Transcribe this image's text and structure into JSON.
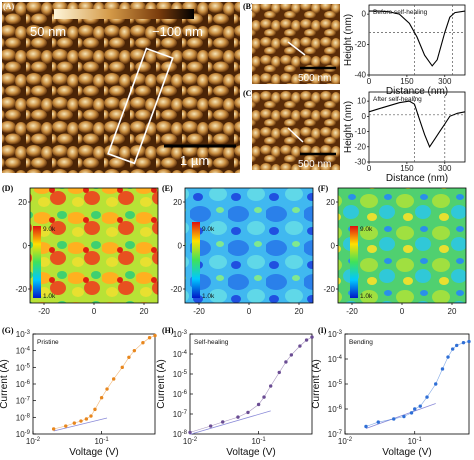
{
  "panels": {
    "A": {
      "label": "(A)",
      "scale_top_left": "50 nm",
      "scale_top_right": "−100 nm",
      "scalebar": "1 µm"
    },
    "B": {
      "label": "(B)",
      "scalebar": "500 nm",
      "legend": "Before self-healing"
    },
    "C": {
      "label": "(C)",
      "scalebar": "500 nm",
      "legend": "After self-healing"
    },
    "D": {
      "label": "(D)",
      "cmax": "9.0k",
      "cmin": "1.0k"
    },
    "E": {
      "label": "(E)",
      "cmax": "9.0k",
      "cmin": "1.0k"
    },
    "F": {
      "label": "(F)",
      "cmax": "9.0k",
      "cmin": "1.0k"
    },
    "G": {
      "label": "(G)",
      "legend": "Pristine"
    },
    "H": {
      "label": "(H)",
      "legend": "Self-healing"
    },
    "I": {
      "label": "(I)",
      "legend": "Bending"
    }
  },
  "profile_axes": {
    "ylabel": "Height (nm)",
    "xlabel": "Distance (nm)"
  },
  "map_axes": {
    "xticks": [
      "-20",
      "0",
      "20"
    ],
    "yticks": [
      "20",
      "0",
      "-20"
    ]
  },
  "iv_axes": {
    "ylabel": "Current (A)",
    "xlabel": "Voltage (V)"
  },
  "colors": {
    "orange": "#e8871e",
    "purple": "#6a4c93",
    "blue": "#2f6fd6",
    "fit": "#8a8ad8"
  },
  "chart_data": [
    {
      "type": "line",
      "title": "Before self-healing",
      "xlabel": "Distance (nm)",
      "ylabel": "Height (nm)",
      "xlim": [
        0,
        380
      ],
      "ylim": [
        -40,
        6
      ],
      "xticks": [
        0,
        150,
        300
      ],
      "yticks": [
        0,
        -20,
        -40
      ],
      "x": [
        0,
        40,
        80,
        120,
        160,
        190,
        220,
        250,
        270,
        300,
        320,
        340,
        380
      ],
      "y": [
        2,
        2,
        1.5,
        0,
        -6,
        -15,
        -27,
        -34,
        -30,
        -12,
        -2,
        1,
        2
      ],
      "guides_x": [
        180,
        330
      ],
      "guide_y": -12
    },
    {
      "type": "line",
      "title": "After self-healing",
      "xlabel": "Distance (nm)",
      "ylabel": "Height (nm)",
      "xlim": [
        0,
        380
      ],
      "ylim": [
        -30,
        16
      ],
      "xticks": [
        0,
        150,
        300
      ],
      "yticks": [
        10,
        0,
        -10,
        -20,
        -30
      ],
      "x": [
        0,
        40,
        80,
        120,
        160,
        180,
        200,
        220,
        240,
        260,
        280,
        300,
        320,
        350,
        380
      ],
      "y": [
        3,
        5,
        7,
        9,
        10,
        8,
        -2,
        -12,
        -20,
        -15,
        -10,
        -5,
        0,
        2,
        3
      ],
      "guides_x": [
        180,
        300
      ],
      "guide_y": 1
    },
    {
      "type": "scatter",
      "title": "Pristine",
      "xlabel": "Voltage (V)",
      "ylabel": "Current (A)",
      "xscale": "log",
      "yscale": "log",
      "xlim": [
        0.01,
        0.6
      ],
      "ylim": [
        1e-09,
        0.001
      ],
      "x": [
        0.02,
        0.03,
        0.04,
        0.05,
        0.06,
        0.07,
        0.08,
        0.1,
        0.12,
        0.15,
        0.2,
        0.25,
        0.3,
        0.4,
        0.5,
        0.6
      ],
      "y": [
        2e-09,
        3e-09,
        4.5e-09,
        6e-09,
        8e-09,
        1.2e-08,
        3e-08,
        1.5e-07,
        5e-07,
        2e-06,
        1e-05,
        4e-05,
        0.0001,
        0.0003,
        0.0006,
        0.0008
      ]
    },
    {
      "type": "scatter",
      "title": "Self-healing",
      "xlabel": "Voltage (V)",
      "ylabel": "Current (A)",
      "xscale": "log",
      "yscale": "log",
      "xlim": [
        0.01,
        0.6
      ],
      "ylim": [
        1e-08,
        0.001
      ],
      "x": [
        0.01,
        0.02,
        0.03,
        0.05,
        0.07,
        0.1,
        0.12,
        0.15,
        0.2,
        0.25,
        0.3,
        0.4,
        0.5,
        0.6
      ],
      "y": [
        1.2e-08,
        2.5e-08,
        4e-08,
        7e-08,
        1.2e-07,
        3e-07,
        7e-07,
        2.5e-06,
        1.2e-05,
        4e-05,
        9e-05,
        0.00025,
        0.0005,
        0.0007
      ]
    },
    {
      "type": "scatter",
      "title": "Bending",
      "xlabel": "Voltage (V)",
      "ylabel": "Current (A)",
      "xscale": "log",
      "yscale": "log",
      "xlim": [
        0.01,
        0.6
      ],
      "ylim": [
        1e-07,
        0.001
      ],
      "x": [
        0.02,
        0.03,
        0.05,
        0.07,
        0.09,
        0.1,
        0.12,
        0.15,
        0.2,
        0.25,
        0.3,
        0.35,
        0.4,
        0.5,
        0.6
      ],
      "y": [
        2e-07,
        3e-07,
        4e-07,
        5e-07,
        7e-07,
        1e-06,
        1.3e-06,
        3e-06,
        1e-05,
        4e-05,
        0.00012,
        0.00025,
        0.00035,
        0.00045,
        0.0005
      ]
    }
  ]
}
